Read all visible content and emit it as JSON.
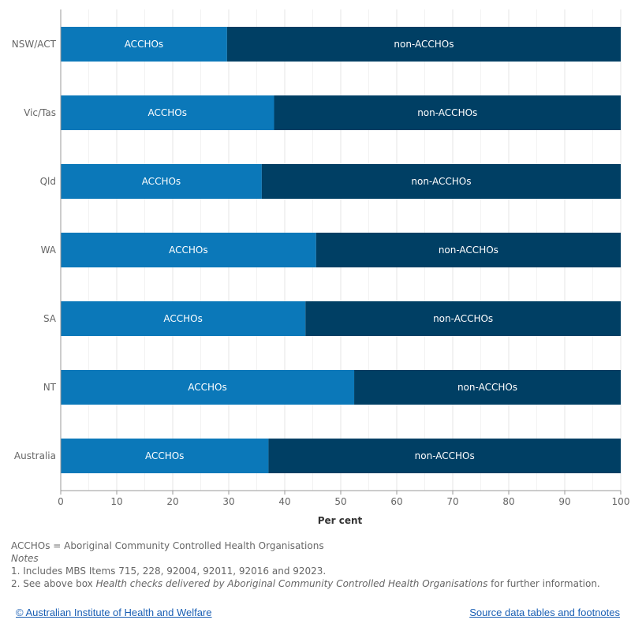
{
  "chart_data": {
    "type": "bar",
    "orientation": "horizontal",
    "stacked": true,
    "categories": [
      "NSW/ACT",
      "Vic/Tas",
      "Qld",
      "WA",
      "SA",
      "NT",
      "Australia"
    ],
    "series": [
      {
        "name": "ACCHOs",
        "color": "#0b78b9",
        "values": [
          29.7,
          38.1,
          35.9,
          45.6,
          43.7,
          52.4,
          37.1
        ]
      },
      {
        "name": "non-ACCHOs",
        "color": "#003f64",
        "values": [
          70.3,
          61.9,
          64.1,
          54.4,
          56.3,
          47.6,
          62.9
        ]
      }
    ],
    "xlabel": "Per cent",
    "ylabel": "",
    "xlim": [
      0,
      100
    ],
    "xticks": [
      0,
      10,
      20,
      30,
      40,
      50,
      60,
      70,
      80,
      90,
      100
    ],
    "grid": true,
    "legend": "none"
  },
  "notes": {
    "definition": "ACCHOs = Aboriginal Community Controlled Health Organisations",
    "heading": "Notes",
    "note1": "1. Includes MBS Items 715, 228, 92004, 92011, 92016 and 92023.",
    "note2_prefix": "2. See above box ",
    "note2_italic": "Health checks delivered by Aboriginal Community Controlled Health Organisations",
    "note2_suffix": " for further information."
  },
  "footer": {
    "copyright": "© Australian Institute of Health and Welfare",
    "source": "Source data tables and footnotes"
  }
}
